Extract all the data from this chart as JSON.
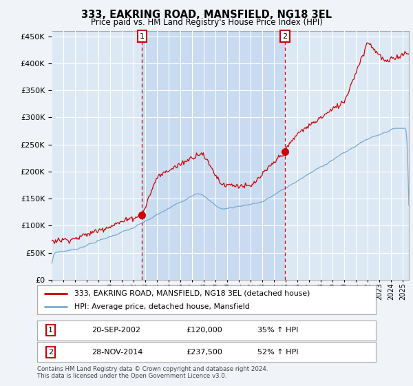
{
  "title": "333, EAKRING ROAD, MANSFIELD, NG18 3EL",
  "subtitle": "Price paid vs. HM Land Registry's House Price Index (HPI)",
  "background_color": "#f0f4f8",
  "plot_bg_color": "#dce9f5",
  "shade_color": "#c5d9f0",
  "red_line_color": "#cc0000",
  "blue_line_color": "#7aaad0",
  "grid_color": "#ffffff",
  "ylim": [
    0,
    460000
  ],
  "yticks": [
    0,
    50000,
    100000,
    150000,
    200000,
    250000,
    300000,
    350000,
    400000,
    450000
  ],
  "xlim_start": 1995.0,
  "xlim_end": 2025.5,
  "sale1_x": 2002.72,
  "sale1_y": 120000,
  "sale2_x": 2014.91,
  "sale2_y": 237500,
  "legend_label_red": "333, EAKRING ROAD, MANSFIELD, NG18 3EL (detached house)",
  "legend_label_blue": "HPI: Average price, detached house, Mansfield",
  "footer": "Contains HM Land Registry data © Crown copyright and database right 2024.\nThis data is licensed under the Open Government Licence v3.0."
}
